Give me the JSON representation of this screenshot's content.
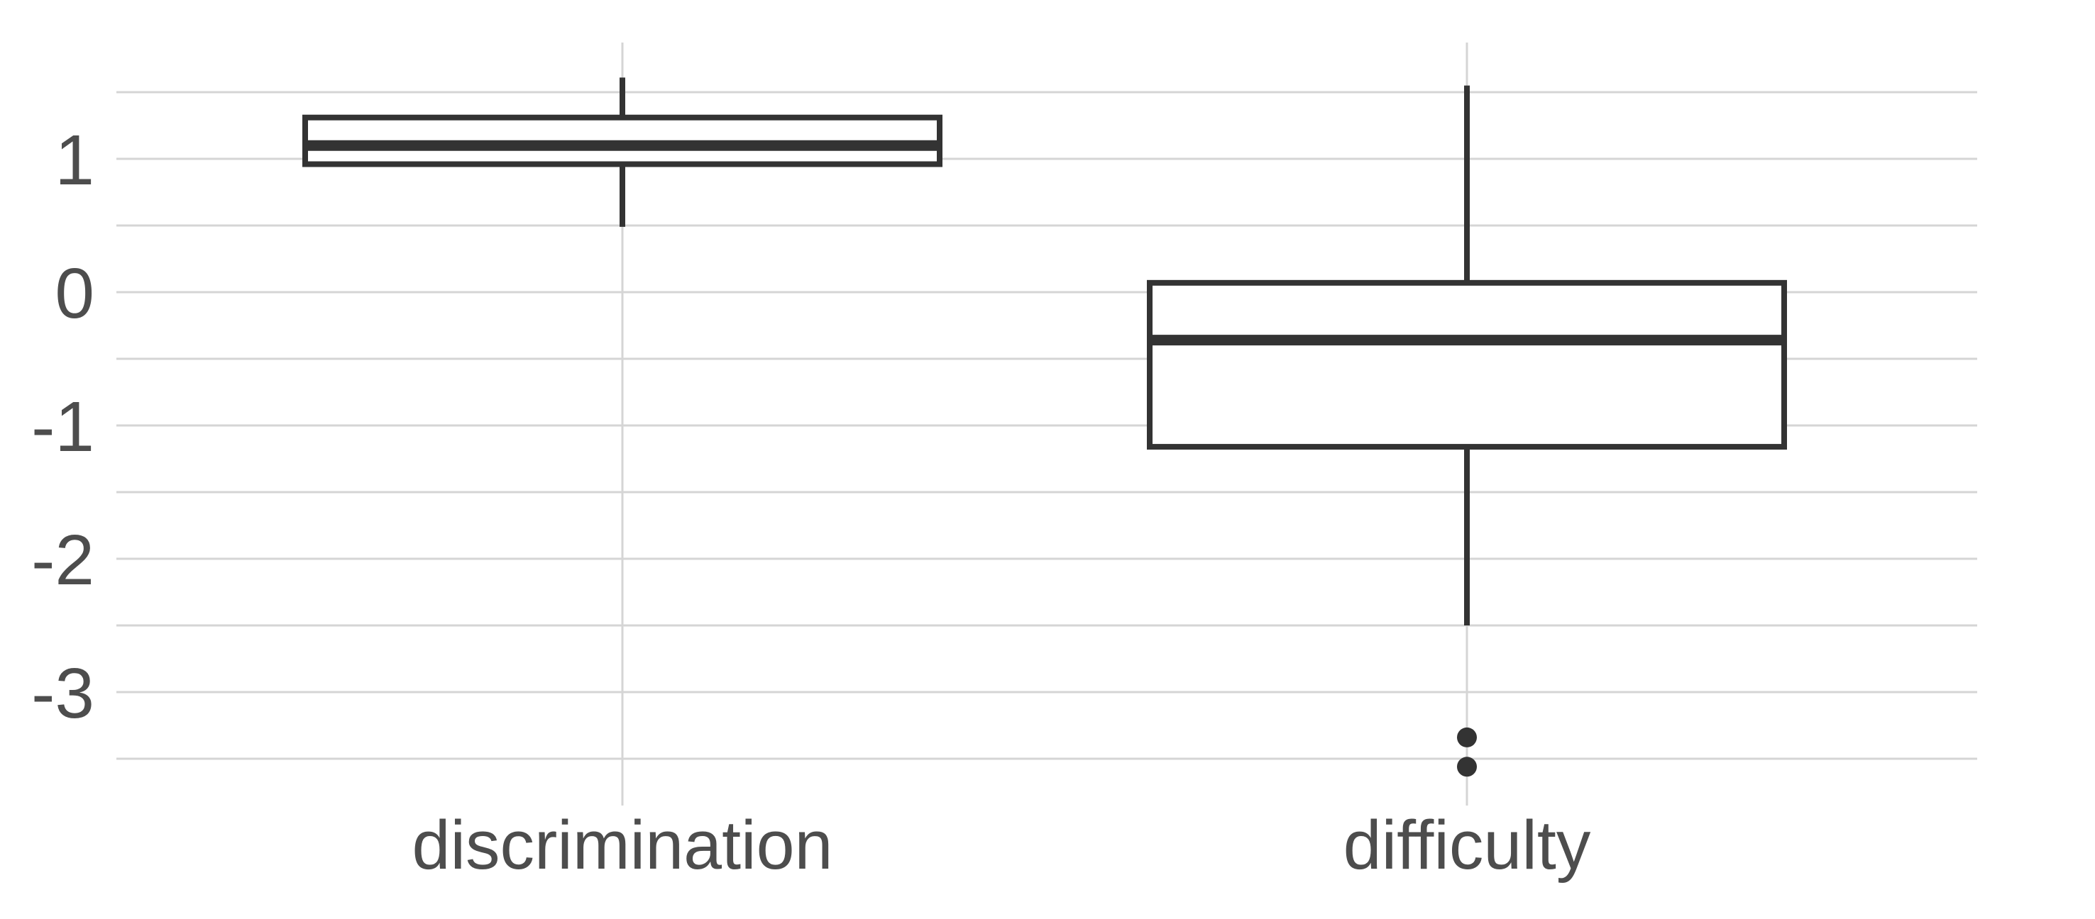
{
  "chart_data": {
    "type": "boxplot",
    "title": "",
    "categories": [
      "discrimination",
      "difficulty"
    ],
    "series": [
      {
        "name": "discrimination",
        "whisker_low": 0.49,
        "q1": 0.96,
        "median": 1.1,
        "q3": 1.31,
        "whisker_high": 1.61,
        "outliers": []
      },
      {
        "name": "difficulty",
        "whisker_low": -2.5,
        "q1": -1.16,
        "median": -0.36,
        "q3": 0.07,
        "whisker_high": 1.55,
        "outliers": [
          -3.34,
          -3.56
        ]
      }
    ],
    "y_axis": {
      "tick_values": [
        1,
        0,
        -1,
        -2,
        -3
      ],
      "tick_labels": [
        "1",
        "0",
        "-1",
        "-2",
        "-3"
      ],
      "minor_grid_interval": 0.5,
      "grid_values": [
        1.5,
        1.0,
        0.5,
        0.0,
        -0.5,
        -1.0,
        -1.5,
        -2.0,
        -2.5,
        -3.0,
        -3.5
      ],
      "range": [
        -3.83,
        1.87
      ],
      "grid": true
    },
    "x_axis": {
      "labels": [
        "discrimination",
        "difficulty"
      ]
    },
    "legend": "none"
  },
  "style": {
    "background_color": "#ffffff",
    "box_stroke_color": "#333333",
    "box_fill_color": "#ffffff",
    "outlier_color": "#333333",
    "grid_color": "#d5d5d5",
    "label_color": "#4d4d4d"
  }
}
